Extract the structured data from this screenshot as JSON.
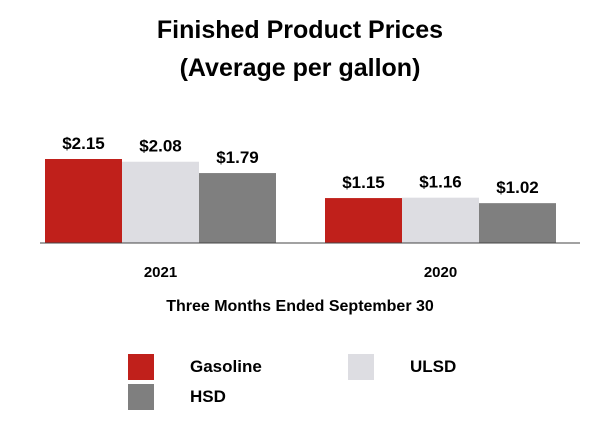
{
  "chart_data": {
    "type": "bar",
    "title": "Finished Product Prices",
    "subtitle": "(Average per gallon)",
    "xlabel": "Three Months Ended September 30",
    "ylabel": "",
    "categories": [
      "2021",
      "2020"
    ],
    "series": [
      {
        "name": "Gasoline",
        "color": "#c0201b",
        "values": [
          2.15,
          1.15
        ],
        "labels": [
          "$2.15",
          "$1.15"
        ]
      },
      {
        "name": "ULSD",
        "color": "#dddde2",
        "values": [
          2.08,
          1.16
        ],
        "labels": [
          "$2.08",
          "$1.16"
        ]
      },
      {
        "name": "HSD",
        "color": "#7f7f7f",
        "values": [
          1.79,
          1.02
        ],
        "labels": [
          "$1.79",
          "$1.02"
        ]
      }
    ],
    "ylim": [
      0,
      2.15
    ],
    "grid": false,
    "legend_position": "bottom"
  }
}
